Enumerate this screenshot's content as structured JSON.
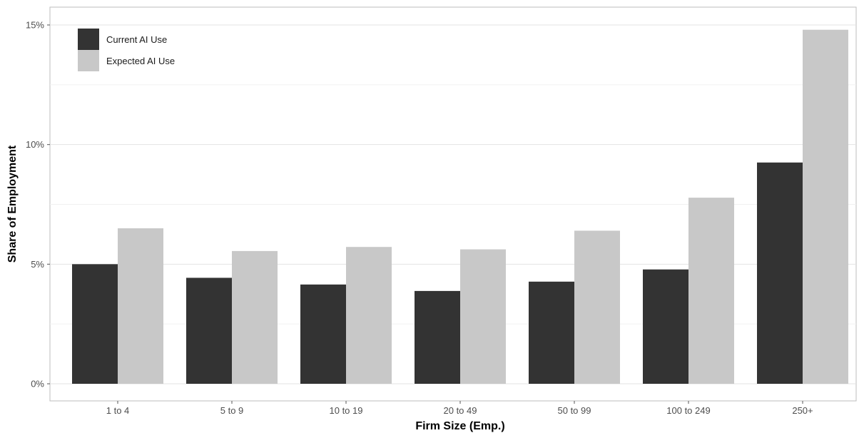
{
  "chart_data": {
    "type": "bar",
    "title": "",
    "xlabel": "Firm Size (Emp.)",
    "ylabel": "Share of Employment",
    "categories": [
      "1 to 4",
      "5 to 9",
      "10 to 19",
      "20 to 49",
      "50 to 99",
      "100 to 249",
      "250+"
    ],
    "series": [
      {
        "name": "Current AI Use",
        "color": "#333333",
        "values": [
          5.0,
          4.43,
          4.15,
          3.88,
          4.27,
          4.78,
          9.25
        ]
      },
      {
        "name": "Expected AI Use",
        "color": "#c8c8c8",
        "values": [
          6.5,
          5.55,
          5.72,
          5.62,
          6.4,
          7.78,
          14.8
        ]
      }
    ],
    "ylim": [
      0,
      15
    ],
    "yticks": [
      0,
      5,
      10,
      15
    ],
    "ytick_labels": [
      "0%",
      "5%",
      "10%",
      "15%"
    ],
    "grid": true,
    "legend_position": "top-left"
  }
}
